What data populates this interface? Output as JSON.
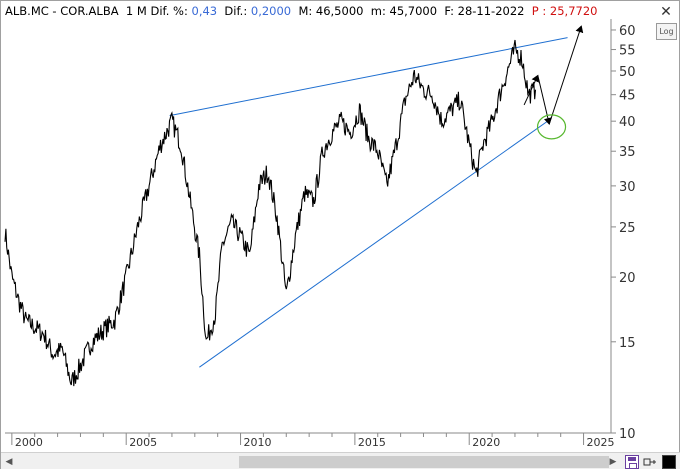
{
  "info": {
    "symbol": "ALB.MC - COR.ALBA",
    "period": "1 M",
    "dif_pct_label": "Dif. %:",
    "dif_pct_value": "0,43",
    "dif_label": "Dif.:",
    "dif_value": "0,2000",
    "max_label": "M:",
    "max_value": "46,5000",
    "min_label": "m:",
    "min_value": "45,7000",
    "date_label": "F:",
    "date_value": "28-11-2022",
    "price_label": "P :",
    "price_value": "25,7720"
  },
  "toolbar": {
    "close_glyph": "✕",
    "log_label": "Log"
  },
  "scrollbar": {
    "left_glyph": "◀",
    "right_glyph": "▶"
  },
  "chart_data": {
    "type": "line",
    "title": "",
    "xlabel": "",
    "ylabel": "",
    "y_scale": "log",
    "y_ticks": [
      "60",
      "55",
      "50",
      "45",
      "40",
      "35",
      "30",
      "25",
      "20",
      "15",
      "10"
    ],
    "x_ticks": [
      "2000",
      "2005",
      "2010",
      "2015",
      "2020",
      "2025"
    ],
    "xlim": [
      1999.7,
      2026.2
    ],
    "ylim": [
      10,
      63
    ],
    "grid": false,
    "series": [
      {
        "name": "",
        "x": [
          1999.7,
          2000.0,
          2000.3,
          2000.6,
          2001.0,
          2001.4,
          2001.8,
          2002.2,
          2002.6,
          2003.0,
          2003.5,
          2004.0,
          2004.5,
          2005.0,
          2005.5,
          2006.0,
          2006.5,
          2007.0,
          2007.4,
          2007.8,
          2008.2,
          2008.5,
          2008.9,
          2009.2,
          2009.6,
          2010.0,
          2010.4,
          2010.8,
          2011.2,
          2011.6,
          2012.0,
          2012.4,
          2012.8,
          2013.2,
          2013.6,
          2014.0,
          2014.4,
          2014.8,
          2015.2,
          2015.6,
          2016.0,
          2016.4,
          2016.8,
          2017.2,
          2017.6,
          2018.0,
          2018.4,
          2018.8,
          2019.2,
          2019.6,
          2020.0,
          2020.3,
          2020.6,
          2021.0,
          2021.4,
          2021.8,
          2022.0,
          2022.3,
          2022.6,
          2022.9
        ],
        "values": [
          24.5,
          20.0,
          18.0,
          16.5,
          16.0,
          15.5,
          14.2,
          14.5,
          12.5,
          13.5,
          15.0,
          15.8,
          16.5,
          20.0,
          25.0,
          30.0,
          36.0,
          40.0,
          36.0,
          28.0,
          22.0,
          15.0,
          17.0,
          23.0,
          25.5,
          24.0,
          22.0,
          30.0,
          32.0,
          26.0,
          18.5,
          24.0,
          29.0,
          28.0,
          35.0,
          38.0,
          40.0,
          38.0,
          42.0,
          37.0,
          35.0,
          30.0,
          36.0,
          44.0,
          49.0,
          46.0,
          45.0,
          40.0,
          42.0,
          44.0,
          36.0,
          31.5,
          36.0,
          40.0,
          46.0,
          52.0,
          55.0,
          53.0,
          45.0,
          46.0
        ]
      }
    ],
    "annotations": [
      {
        "type": "trendline",
        "from": [
          2006.9,
          41.0
        ],
        "to": [
          2024.3,
          58.0
        ]
      },
      {
        "type": "trendline",
        "from": [
          2008.2,
          13.4
        ],
        "to": [
          2023.6,
          40.5
        ]
      },
      {
        "type": "arrow",
        "from": [
          2022.4,
          43.0
        ],
        "to": [
          2023.0,
          49.0
        ]
      },
      {
        "type": "arrow",
        "from": [
          2023.0,
          49.0
        ],
        "to": [
          2023.5,
          39.5
        ]
      },
      {
        "type": "arrow",
        "from": [
          2023.5,
          39.5
        ],
        "to": [
          2024.9,
          61.0
        ]
      },
      {
        "type": "ellipse",
        "center": [
          2023.6,
          39.0
        ]
      }
    ],
    "colors": {
      "price": "#000000",
      "trendline": "#1f6fd0",
      "arrow": "#000000",
      "ellipse": "#58b830",
      "axis": "#8a8a8a"
    }
  }
}
